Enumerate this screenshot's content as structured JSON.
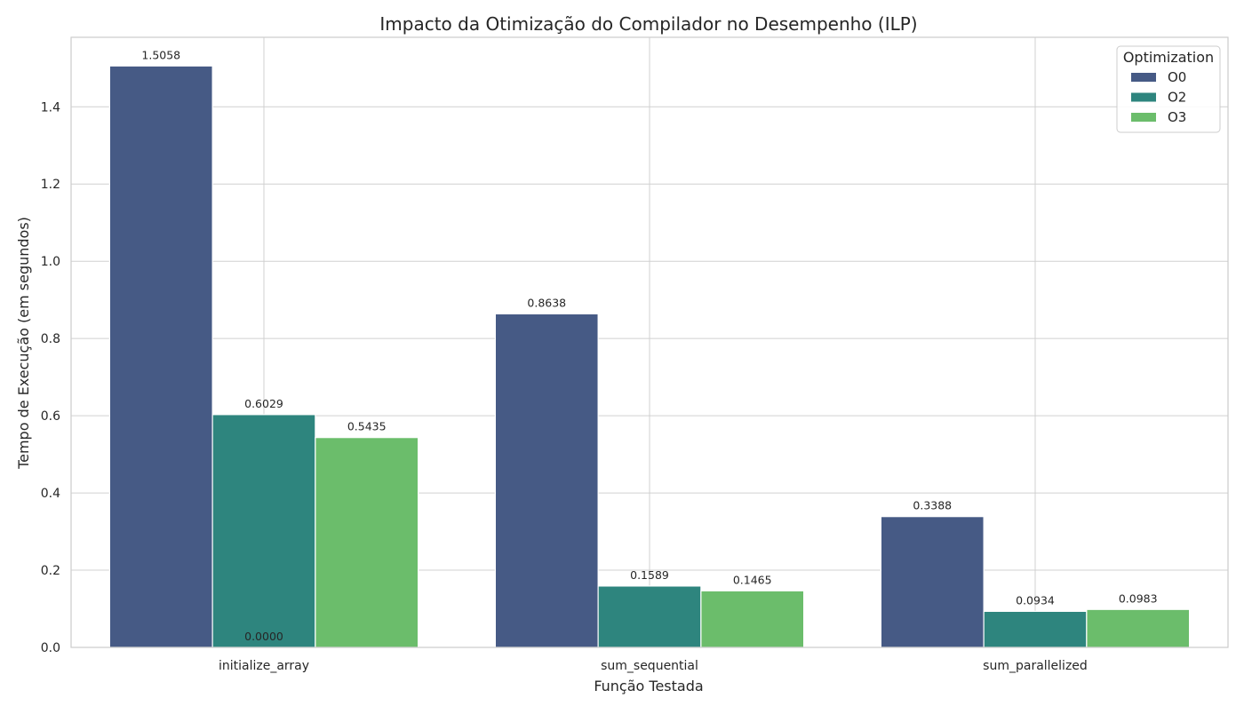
{
  "chart_data": {
    "type": "bar",
    "title": "Impacto da Otimização do Compilador no Desempenho (ILP)",
    "xlabel": "Função Testada",
    "ylabel": "Tempo de Execução (em segundos)",
    "ylim": [
      0,
      1.58
    ],
    "yticks": [
      "0.0",
      "0.2",
      "0.4",
      "0.6",
      "0.8",
      "1.0",
      "1.2",
      "1.4"
    ],
    "grid": true,
    "legend": {
      "title": "Optimization",
      "position": "top-right"
    },
    "categories": [
      "initialize_array",
      "sum_sequential",
      "sum_parallelized"
    ],
    "series": [
      {
        "name": "O0",
        "color": "#465a85",
        "values": [
          1.5058,
          0.8638,
          0.3388
        ],
        "labels": [
          "1.5058",
          "0.8638",
          "0.3388"
        ]
      },
      {
        "name": "O2",
        "color": "#2e857e",
        "values": [
          0.6029,
          0.1589,
          0.0934
        ],
        "labels": [
          "0.6029",
          "0.1589",
          "0.0934"
        ]
      },
      {
        "name": "O3",
        "color": "#6bbd6b",
        "values": [
          0.5435,
          0.1465,
          0.0983
        ],
        "labels": [
          "0.5435",
          "0.1465",
          "0.0983"
        ]
      }
    ],
    "annotations": [
      {
        "text": "0.0000",
        "x": "initialize_array",
        "y": 0.0
      }
    ]
  }
}
